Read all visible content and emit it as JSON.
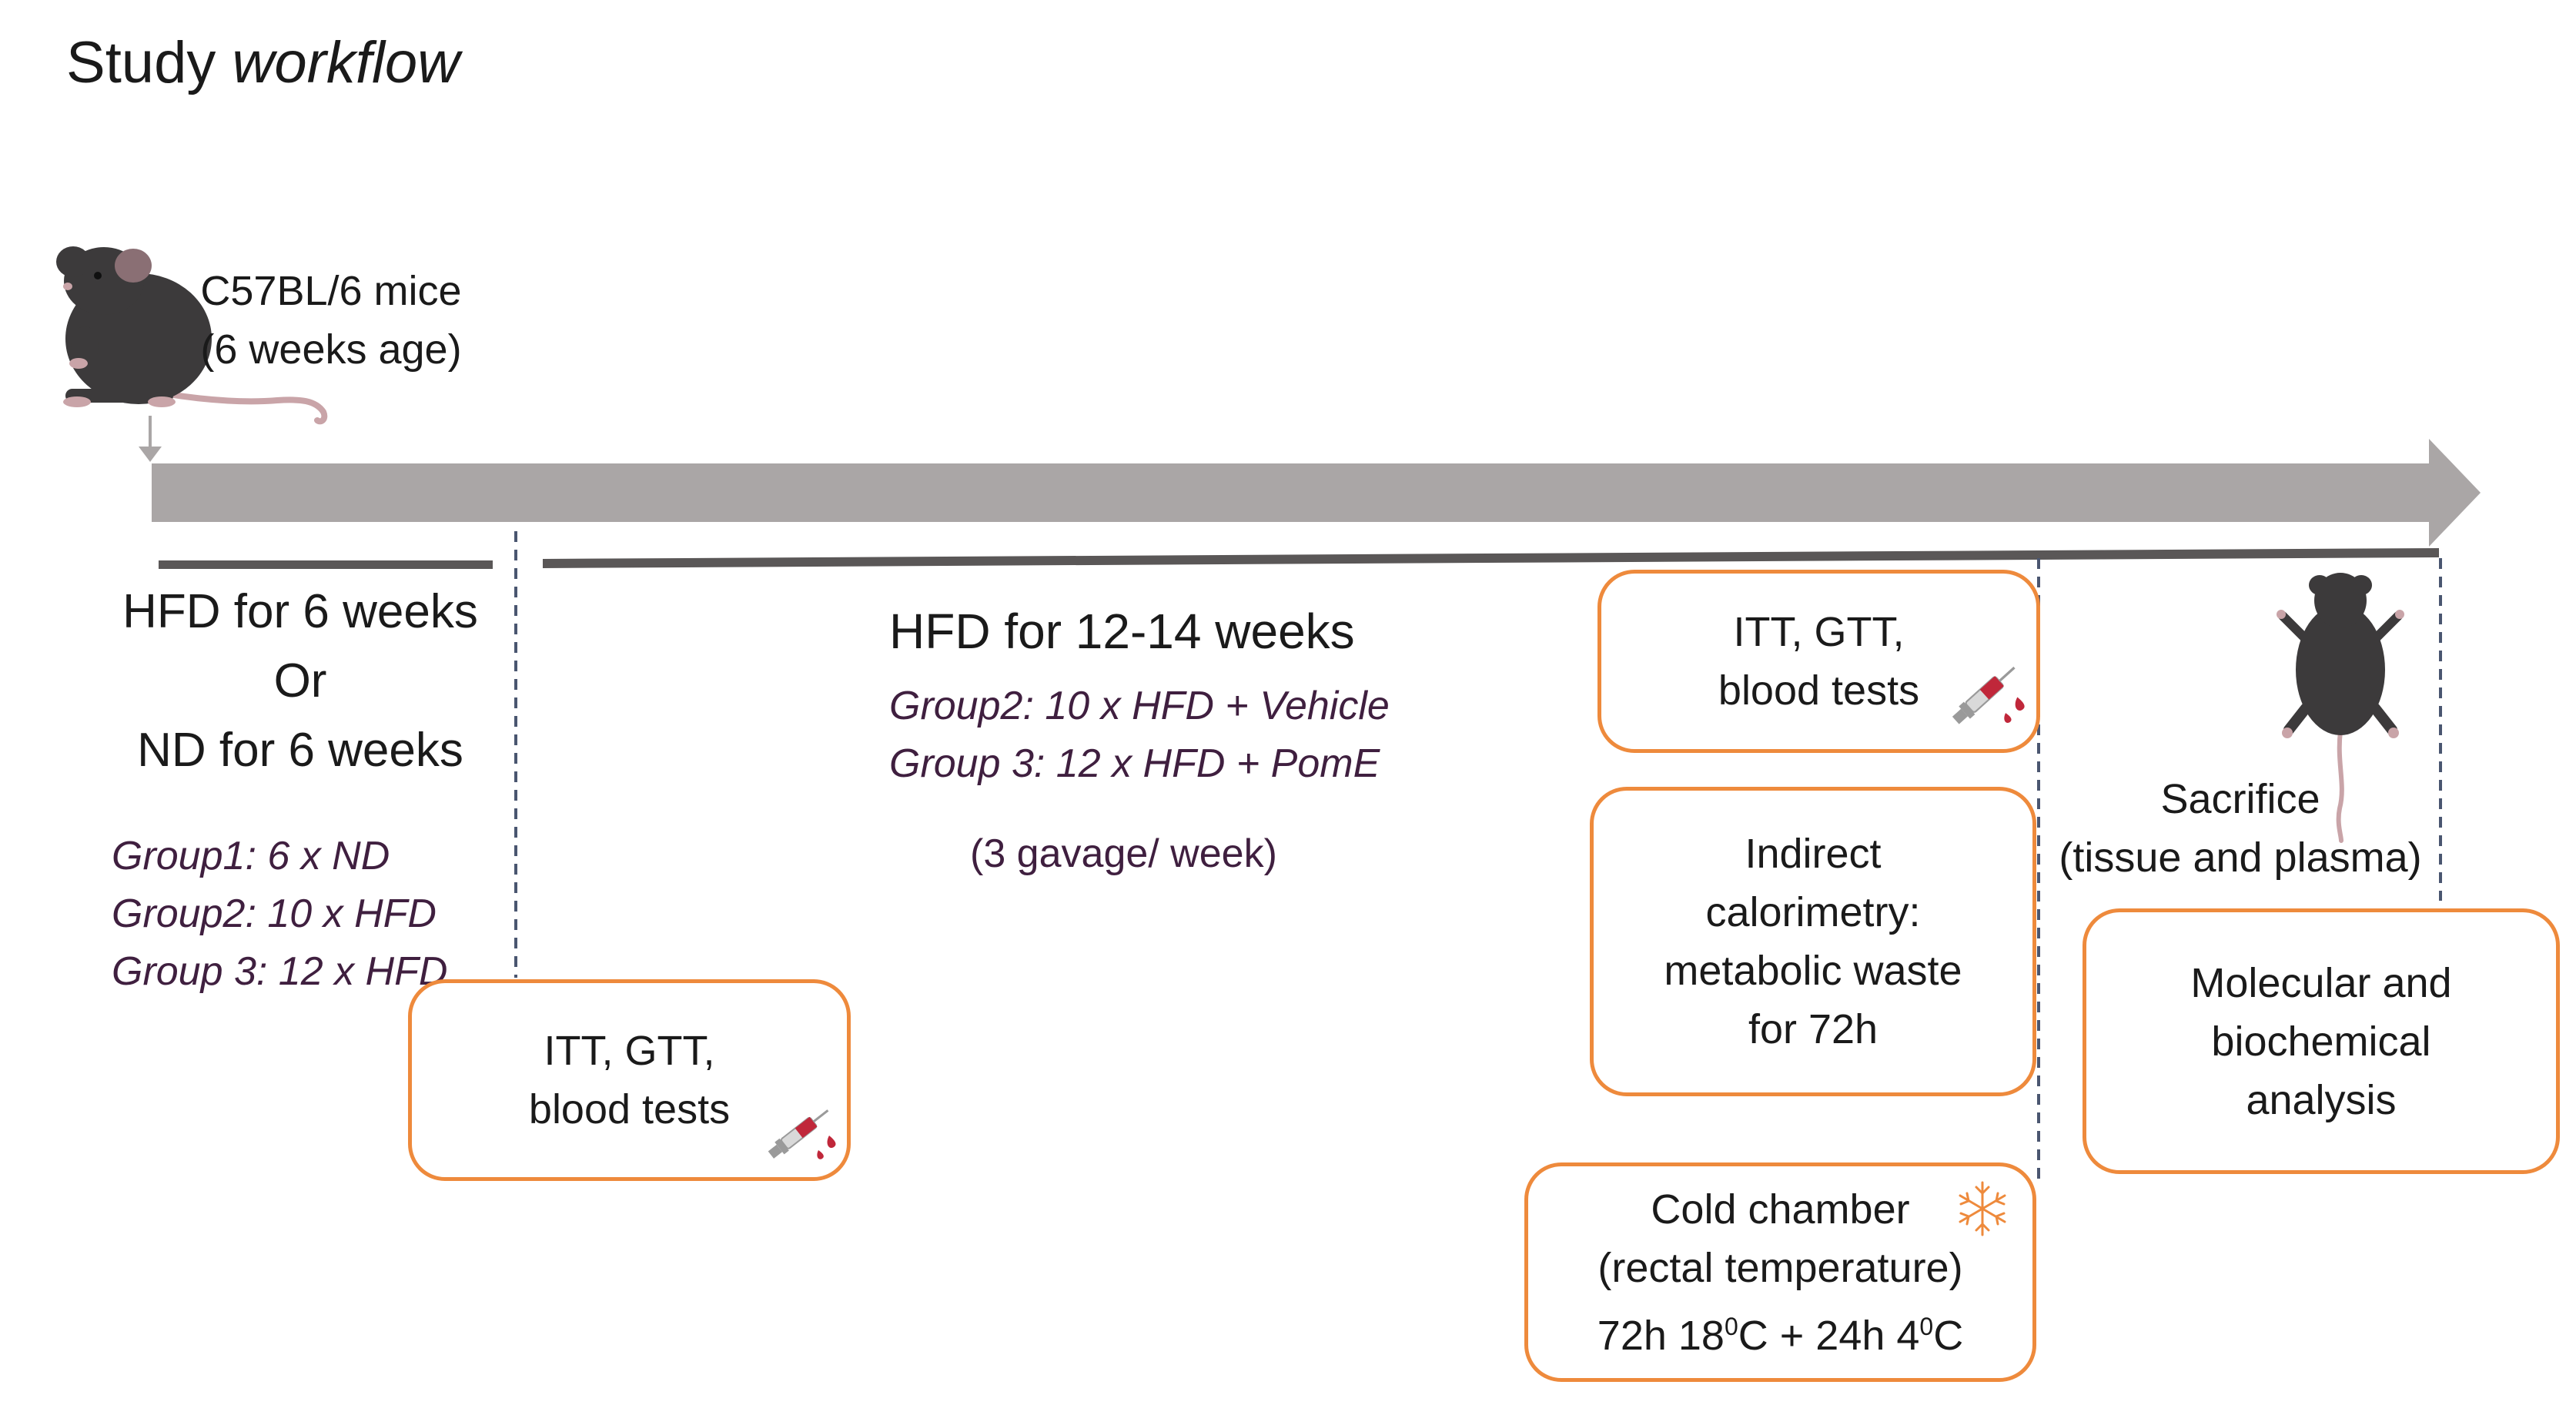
{
  "title": {
    "main": "Study ",
    "emphasis": "workflow"
  },
  "start": {
    "line1": "C57BL/6 mice",
    "line2": "(6 weeks age)"
  },
  "phase1": {
    "lines": [
      "HFD for 6 weeks",
      "Or",
      "ND for 6 weeks"
    ],
    "groups": [
      "Group1: 6 x ND",
      "Group2: 10 x HFD",
      "Group 3: 12 x HFD"
    ]
  },
  "phase2": {
    "title": "HFD for 12-14 weeks",
    "groups": [
      "Group2: 10 x HFD + Vehicle",
      "Group 3: 12 x HFD + PomE"
    ],
    "note": "(3 gavage/ week)"
  },
  "boxes": {
    "tests_1": {
      "lines": [
        "ITT, GTT,",
        "blood tests"
      ]
    },
    "tests_2": {
      "lines": [
        "ITT, GTT,",
        "blood tests"
      ]
    },
    "calorimetry": {
      "lines": [
        "Indirect",
        "calorimetry:",
        "metabolic waste",
        "for 72h"
      ]
    },
    "cold": {
      "line1": "Cold chamber",
      "line2": "(rectal temperature)",
      "line3_a": "72h 18",
      "sup1": "0",
      "line3_b": "C + 24h 4",
      "sup2": "0",
      "line3_c": "C"
    },
    "analysis": {
      "lines": [
        "Molecular and",
        "biochemical",
        "analysis"
      ]
    }
  },
  "sacrifice": {
    "line1": "Sacrifice",
    "line2": "(tissue and plasma)"
  },
  "icons": [
    "mouse-sitting-icon",
    "syringe-icon",
    "snowflake-icon",
    "mouse-top-view-icon"
  ],
  "colors": {
    "timeline": "#aaa6a6",
    "phase_bar": "#5a5757",
    "box_border": "#ee8a3c",
    "group_text": "#3f1f3f",
    "blood": "#c0273a"
  }
}
